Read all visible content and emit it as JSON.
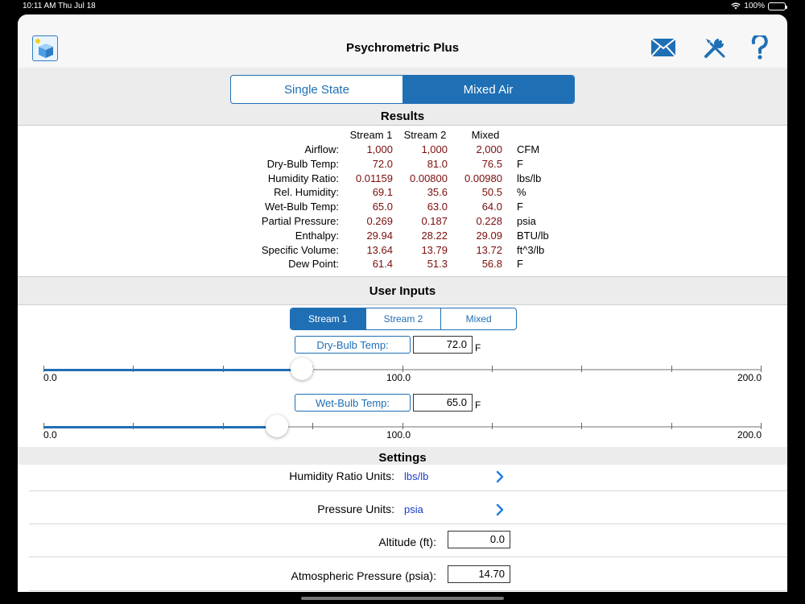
{
  "status": {
    "time": "10:11 AM",
    "date": "Thu Jul 18",
    "battery": "100%"
  },
  "header": {
    "title": "Psychrometric Plus"
  },
  "mode_tabs": [
    {
      "label": "Single State"
    },
    {
      "label": "Mixed Air"
    }
  ],
  "results": {
    "title": "Results",
    "columns": [
      "Stream 1",
      "Stream 2",
      "Mixed"
    ],
    "rows": [
      {
        "label": "Airflow:",
        "s1": "1,000",
        "s2": "1,000",
        "mix": "2,000",
        "unit": "CFM"
      },
      {
        "label": "Dry-Bulb Temp:",
        "s1": "72.0",
        "s2": "81.0",
        "mix": "76.5",
        "unit": "F"
      },
      {
        "label": "Humidity Ratio:",
        "s1": "0.01159",
        "s2": "0.00800",
        "mix": "0.00980",
        "unit": "lbs/lb"
      },
      {
        "label": "Rel. Humidity:",
        "s1": "69.1",
        "s2": "35.6",
        "mix": "50.5",
        "unit": "%"
      },
      {
        "label": "Wet-Bulb Temp:",
        "s1": "65.0",
        "s2": "63.0",
        "mix": "64.0",
        "unit": "F"
      },
      {
        "label": "Partial Pressure:",
        "s1": "0.269",
        "s2": "0.187",
        "mix": "0.228",
        "unit": "psia"
      },
      {
        "label": "Enthalpy:",
        "s1": "29.94",
        "s2": "28.22",
        "mix": "29.09",
        "unit": "BTU/lb"
      },
      {
        "label": "Specific Volume:",
        "s1": "13.64",
        "s2": "13.79",
        "mix": "13.72",
        "unit": "ft^3/lb"
      },
      {
        "label": "Dew Point:",
        "s1": "61.4",
        "s2": "51.3",
        "mix": "56.8",
        "unit": "F"
      }
    ]
  },
  "inputs": {
    "title": "User Inputs",
    "stream_tabs": [
      {
        "label": "Stream 1"
      },
      {
        "label": "Stream 2"
      },
      {
        "label": "Mixed"
      }
    ],
    "dry_bulb": {
      "button": "Dry-Bulb Temp:",
      "value": "72.0",
      "unit": "F",
      "min": "0.0",
      "mid": "100.0",
      "max": "200.0",
      "level": 72
    },
    "wet_bulb": {
      "button": "Wet-Bulb Temp:",
      "value": "65.0",
      "unit": "F",
      "min": "0.0",
      "mid": "100.0",
      "max": "200.0",
      "level": 65
    }
  },
  "settings": {
    "title": "Settings",
    "humidity_units": {
      "label": "Humidity Ratio Units:",
      "value": "lbs/lb"
    },
    "pressure_units": {
      "label": "Pressure Units:",
      "value": "psia"
    },
    "altitude": {
      "label": "Altitude (ft):",
      "value": "0.0"
    },
    "atm_pressure": {
      "label": "Atmospheric Pressure (psia):",
      "value": "14.70"
    }
  },
  "colors": {
    "accent": "#1f6fb5",
    "result_value": "#7a0d0d",
    "settings_value": "#1a3ccc"
  }
}
